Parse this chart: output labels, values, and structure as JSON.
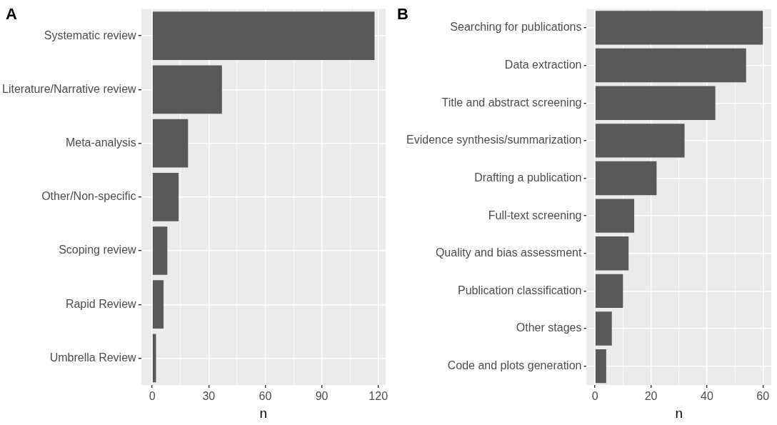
{
  "chart_data": [
    {
      "type": "bar",
      "orientation": "horizontal",
      "title": "A",
      "xlabel": "n",
      "categories": [
        "Systematic review",
        "Literature/Narrative review",
        "Meta-analysis",
        "Other/Non-specific",
        "Scoping review",
        "Rapid Review",
        "Umbrella Review"
      ],
      "values": [
        118,
        37,
        19,
        14,
        8,
        6,
        2
      ],
      "color": "#595959",
      "xlim": [
        -5.9,
        123.9
      ],
      "xticks": [
        0,
        {
          "value": 15,
          "label": null
        },
        30,
        {
          "value": 45,
          "label": null
        },
        60,
        {
          "value": 75,
          "label": null
        },
        90,
        {
          "value": 105,
          "label": null
        },
        120
      ],
      "grid": true,
      "legend": false
    },
    {
      "type": "bar",
      "orientation": "horizontal",
      "title": "B",
      "xlabel": "n",
      "categories": [
        "Searching for publications",
        "Data extraction",
        "Title and abstract screening",
        "Evidence synthesis/summarization",
        "Drafting a publication",
        "Full-text screening",
        "Quality and bias assessment",
        "Publication classification",
        "Other stages",
        "Code and plots generation"
      ],
      "values": [
        60,
        54,
        43,
        32,
        22,
        14,
        12,
        10,
        6,
        4
      ],
      "color": "#595959",
      "xlim": [
        -3,
        63
      ],
      "xticks": [
        0,
        {
          "value": 10,
          "label": null
        },
        20,
        {
          "value": 30,
          "label": null
        },
        40,
        {
          "value": 50,
          "label": null
        },
        60
      ],
      "grid": true,
      "legend": false
    }
  ]
}
